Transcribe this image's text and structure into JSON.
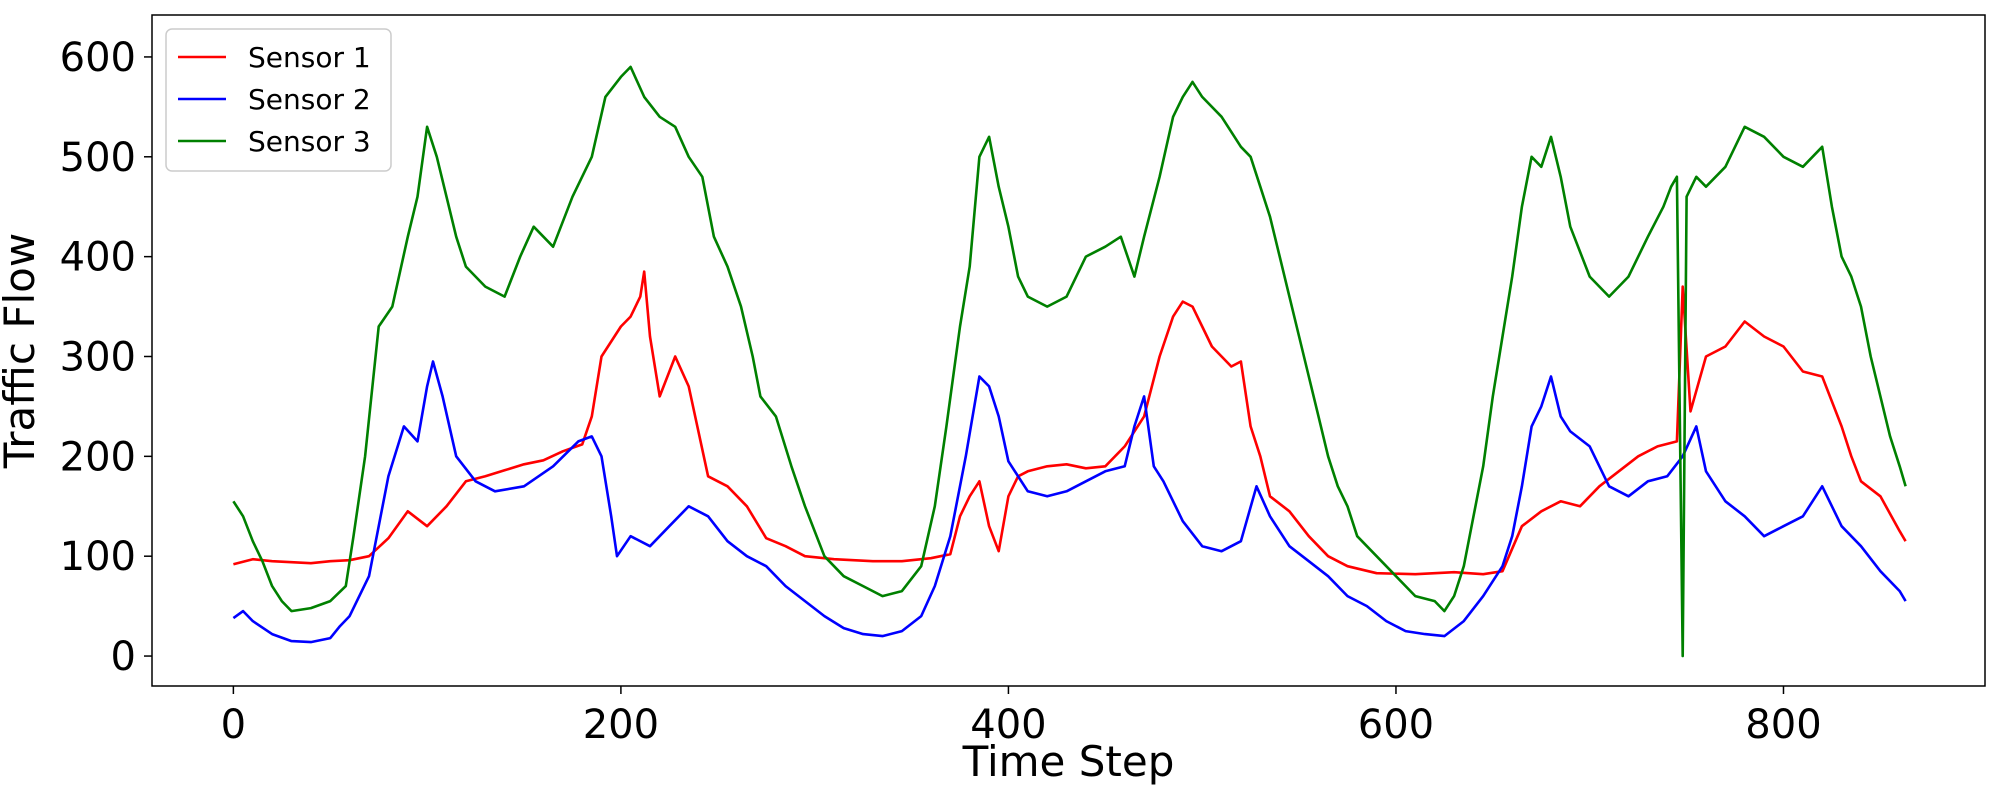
{
  "chart_data": {
    "type": "line",
    "title": "",
    "xlabel": "Time Step",
    "ylabel": "Traffic Flow",
    "xlim": [
      -42,
      904
    ],
    "ylim": [
      -30,
      642
    ],
    "xticks": [
      0,
      200,
      400,
      600,
      800
    ],
    "yticks": [
      0,
      100,
      200,
      300,
      400,
      500,
      600
    ],
    "grid": false,
    "legend": {
      "placement": "upper-left"
    },
    "series": [
      {
        "name": "Sensor 1",
        "color": "#ff0000",
        "points": [
          [
            0,
            92
          ],
          [
            10,
            97
          ],
          [
            20,
            95
          ],
          [
            30,
            94
          ],
          [
            40,
            93
          ],
          [
            50,
            95
          ],
          [
            60,
            96
          ],
          [
            70,
            100
          ],
          [
            80,
            118
          ],
          [
            90,
            145
          ],
          [
            100,
            130
          ],
          [
            110,
            150
          ],
          [
            120,
            175
          ],
          [
            130,
            180
          ],
          [
            140,
            186
          ],
          [
            150,
            192
          ],
          [
            160,
            196
          ],
          [
            170,
            205
          ],
          [
            180,
            212
          ],
          [
            185,
            240
          ],
          [
            190,
            300
          ],
          [
            200,
            330
          ],
          [
            205,
            340
          ],
          [
            210,
            360
          ],
          [
            212,
            385
          ],
          [
            215,
            320
          ],
          [
            220,
            260
          ],
          [
            228,
            300
          ],
          [
            235,
            270
          ],
          [
            245,
            180
          ],
          [
            255,
            170
          ],
          [
            265,
            150
          ],
          [
            275,
            118
          ],
          [
            285,
            110
          ],
          [
            295,
            100
          ],
          [
            310,
            97
          ],
          [
            330,
            95
          ],
          [
            345,
            95
          ],
          [
            360,
            98
          ],
          [
            370,
            102
          ],
          [
            375,
            140
          ],
          [
            380,
            160
          ],
          [
            385,
            175
          ],
          [
            390,
            130
          ],
          [
            395,
            105
          ],
          [
            400,
            160
          ],
          [
            405,
            180
          ],
          [
            410,
            185
          ],
          [
            420,
            190
          ],
          [
            430,
            192
          ],
          [
            440,
            188
          ],
          [
            450,
            190
          ],
          [
            460,
            210
          ],
          [
            470,
            240
          ],
          [
            478,
            300
          ],
          [
            485,
            340
          ],
          [
            490,
            355
          ],
          [
            495,
            350
          ],
          [
            500,
            330
          ],
          [
            505,
            310
          ],
          [
            510,
            300
          ],
          [
            515,
            290
          ],
          [
            520,
            295
          ],
          [
            525,
            230
          ],
          [
            530,
            200
          ],
          [
            535,
            160
          ],
          [
            545,
            145
          ],
          [
            555,
            120
          ],
          [
            565,
            100
          ],
          [
            575,
            90
          ],
          [
            590,
            83
          ],
          [
            610,
            82
          ],
          [
            630,
            84
          ],
          [
            645,
            82
          ],
          [
            655,
            85
          ],
          [
            665,
            130
          ],
          [
            675,
            145
          ],
          [
            685,
            155
          ],
          [
            695,
            150
          ],
          [
            705,
            170
          ],
          [
            715,
            185
          ],
          [
            725,
            200
          ],
          [
            735,
            210
          ],
          [
            745,
            215
          ],
          [
            748,
            370
          ],
          [
            752,
            245
          ],
          [
            760,
            300
          ],
          [
            770,
            310
          ],
          [
            780,
            335
          ],
          [
            790,
            320
          ],
          [
            800,
            310
          ],
          [
            810,
            285
          ],
          [
            820,
            280
          ],
          [
            830,
            230
          ],
          [
            835,
            200
          ],
          [
            840,
            175
          ],
          [
            850,
            160
          ],
          [
            860,
            125
          ],
          [
            863,
            115
          ]
        ]
      },
      {
        "name": "Sensor 2",
        "color": "#0000ff",
        "points": [
          [
            0,
            38
          ],
          [
            5,
            45
          ],
          [
            10,
            35
          ],
          [
            20,
            22
          ],
          [
            30,
            15
          ],
          [
            40,
            14
          ],
          [
            50,
            18
          ],
          [
            55,
            30
          ],
          [
            60,
            40
          ],
          [
            70,
            80
          ],
          [
            75,
            130
          ],
          [
            80,
            180
          ],
          [
            88,
            230
          ],
          [
            95,
            215
          ],
          [
            100,
            270
          ],
          [
            103,
            295
          ],
          [
            108,
            260
          ],
          [
            115,
            200
          ],
          [
            125,
            175
          ],
          [
            135,
            165
          ],
          [
            150,
            170
          ],
          [
            165,
            190
          ],
          [
            178,
            215
          ],
          [
            185,
            220
          ],
          [
            190,
            200
          ],
          [
            195,
            140
          ],
          [
            198,
            100
          ],
          [
            205,
            120
          ],
          [
            215,
            110
          ],
          [
            225,
            130
          ],
          [
            235,
            150
          ],
          [
            245,
            140
          ],
          [
            255,
            115
          ],
          [
            265,
            100
          ],
          [
            275,
            90
          ],
          [
            285,
            70
          ],
          [
            295,
            55
          ],
          [
            305,
            40
          ],
          [
            315,
            28
          ],
          [
            325,
            22
          ],
          [
            335,
            20
          ],
          [
            345,
            25
          ],
          [
            355,
            40
          ],
          [
            362,
            70
          ],
          [
            370,
            120
          ],
          [
            378,
            200
          ],
          [
            385,
            280
          ],
          [
            390,
            270
          ],
          [
            395,
            240
          ],
          [
            400,
            195
          ],
          [
            410,
            165
          ],
          [
            420,
            160
          ],
          [
            430,
            165
          ],
          [
            440,
            175
          ],
          [
            450,
            185
          ],
          [
            460,
            190
          ],
          [
            465,
            230
          ],
          [
            470,
            260
          ],
          [
            475,
            190
          ],
          [
            480,
            175
          ],
          [
            490,
            135
          ],
          [
            500,
            110
          ],
          [
            510,
            105
          ],
          [
            520,
            115
          ],
          [
            528,
            170
          ],
          [
            535,
            140
          ],
          [
            545,
            110
          ],
          [
            555,
            95
          ],
          [
            565,
            80
          ],
          [
            575,
            60
          ],
          [
            585,
            50
          ],
          [
            595,
            35
          ],
          [
            605,
            25
          ],
          [
            615,
            22
          ],
          [
            625,
            20
          ],
          [
            635,
            35
          ],
          [
            645,
            60
          ],
          [
            655,
            90
          ],
          [
            660,
            120
          ],
          [
            665,
            170
          ],
          [
            670,
            230
          ],
          [
            675,
            250
          ],
          [
            680,
            280
          ],
          [
            685,
            240
          ],
          [
            690,
            225
          ],
          [
            700,
            210
          ],
          [
            710,
            170
          ],
          [
            720,
            160
          ],
          [
            730,
            175
          ],
          [
            740,
            180
          ],
          [
            748,
            200
          ],
          [
            755,
            230
          ],
          [
            760,
            185
          ],
          [
            770,
            155
          ],
          [
            780,
            140
          ],
          [
            790,
            120
          ],
          [
            800,
            130
          ],
          [
            810,
            140
          ],
          [
            820,
            170
          ],
          [
            830,
            130
          ],
          [
            840,
            110
          ],
          [
            850,
            85
          ],
          [
            860,
            65
          ],
          [
            863,
            55
          ]
        ]
      },
      {
        "name": "Sensor 3",
        "color": "#008000",
        "points": [
          [
            0,
            155
          ],
          [
            5,
            140
          ],
          [
            10,
            115
          ],
          [
            15,
            95
          ],
          [
            20,
            70
          ],
          [
            25,
            55
          ],
          [
            30,
            45
          ],
          [
            40,
            48
          ],
          [
            50,
            55
          ],
          [
            58,
            70
          ],
          [
            62,
            120
          ],
          [
            68,
            200
          ],
          [
            75,
            330
          ],
          [
            82,
            350
          ],
          [
            90,
            420
          ],
          [
            95,
            460
          ],
          [
            100,
            530
          ],
          [
            105,
            500
          ],
          [
            110,
            460
          ],
          [
            115,
            420
          ],
          [
            120,
            390
          ],
          [
            130,
            370
          ],
          [
            140,
            360
          ],
          [
            148,
            400
          ],
          [
            155,
            430
          ],
          [
            165,
            410
          ],
          [
            175,
            460
          ],
          [
            185,
            500
          ],
          [
            192,
            560
          ],
          [
            200,
            580
          ],
          [
            205,
            590
          ],
          [
            212,
            560
          ],
          [
            220,
            540
          ],
          [
            228,
            530
          ],
          [
            235,
            500
          ],
          [
            242,
            480
          ],
          [
            248,
            420
          ],
          [
            255,
            390
          ],
          [
            262,
            350
          ],
          [
            268,
            300
          ],
          [
            272,
            260
          ],
          [
            280,
            240
          ],
          [
            288,
            190
          ],
          [
            295,
            150
          ],
          [
            305,
            100
          ],
          [
            315,
            80
          ],
          [
            325,
            70
          ],
          [
            335,
            60
          ],
          [
            345,
            65
          ],
          [
            355,
            90
          ],
          [
            362,
            150
          ],
          [
            368,
            230
          ],
          [
            375,
            330
          ],
          [
            380,
            390
          ],
          [
            385,
            500
          ],
          [
            390,
            520
          ],
          [
            395,
            470
          ],
          [
            400,
            430
          ],
          [
            405,
            380
          ],
          [
            410,
            360
          ],
          [
            420,
            350
          ],
          [
            430,
            360
          ],
          [
            440,
            400
          ],
          [
            450,
            410
          ],
          [
            458,
            420
          ],
          [
            465,
            380
          ],
          [
            470,
            420
          ],
          [
            478,
            480
          ],
          [
            485,
            540
          ],
          [
            490,
            560
          ],
          [
            495,
            575
          ],
          [
            500,
            560
          ],
          [
            510,
            540
          ],
          [
            520,
            510
          ],
          [
            525,
            500
          ],
          [
            530,
            470
          ],
          [
            535,
            440
          ],
          [
            540,
            400
          ],
          [
            545,
            360
          ],
          [
            550,
            320
          ],
          [
            555,
            280
          ],
          [
            560,
            240
          ],
          [
            565,
            200
          ],
          [
            570,
            170
          ],
          [
            575,
            150
          ],
          [
            580,
            120
          ],
          [
            590,
            100
          ],
          [
            600,
            80
          ],
          [
            610,
            60
          ],
          [
            620,
            55
          ],
          [
            625,
            45
          ],
          [
            630,
            60
          ],
          [
            635,
            90
          ],
          [
            640,
            140
          ],
          [
            645,
            190
          ],
          [
            650,
            260
          ],
          [
            655,
            320
          ],
          [
            660,
            380
          ],
          [
            665,
            450
          ],
          [
            670,
            500
          ],
          [
            675,
            490
          ],
          [
            680,
            520
          ],
          [
            685,
            480
          ],
          [
            690,
            430
          ],
          [
            700,
            380
          ],
          [
            710,
            360
          ],
          [
            720,
            380
          ],
          [
            730,
            420
          ],
          [
            738,
            450
          ],
          [
            742,
            470
          ],
          [
            745,
            480
          ],
          [
            748,
            0
          ],
          [
            750,
            460
          ],
          [
            755,
            480
          ],
          [
            760,
            470
          ],
          [
            770,
            490
          ],
          [
            780,
            530
          ],
          [
            790,
            520
          ],
          [
            800,
            500
          ],
          [
            810,
            490
          ],
          [
            820,
            510
          ],
          [
            825,
            450
          ],
          [
            830,
            400
          ],
          [
            835,
            380
          ],
          [
            840,
            350
          ],
          [
            845,
            300
          ],
          [
            850,
            260
          ],
          [
            855,
            220
          ],
          [
            860,
            190
          ],
          [
            863,
            170
          ]
        ]
      }
    ]
  }
}
